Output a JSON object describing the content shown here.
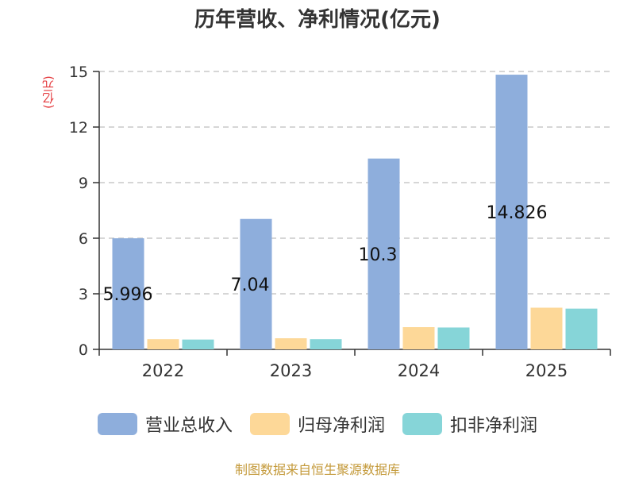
{
  "chart_data": {
    "type": "bar",
    "title": "历年营收、净利情况(亿元)",
    "ylabel": "(亿元)",
    "categories": [
      "2022",
      "2023",
      "2024",
      "2025"
    ],
    "ylim": [
      0,
      15
    ],
    "yticks": [
      0,
      3,
      6,
      9,
      12,
      15
    ],
    "grid": true,
    "legend_position": "bottom",
    "series": [
      {
        "name": "营业总收入",
        "color": "#8eaedc",
        "values": [
          5.996,
          7.04,
          10.3,
          14.826
        ],
        "labels": [
          "5.996",
          "7.04",
          "10.3",
          "14.826"
        ]
      },
      {
        "name": "归母净利润",
        "color": "#fdd898",
        "values": [
          0.55,
          0.6,
          1.2,
          2.25
        ]
      },
      {
        "name": "扣非净利润",
        "color": "#86d5d8",
        "values": [
          0.53,
          0.55,
          1.18,
          2.2
        ]
      }
    ]
  },
  "footer": {
    "source": "制图数据来自恒生聚源数据库"
  }
}
